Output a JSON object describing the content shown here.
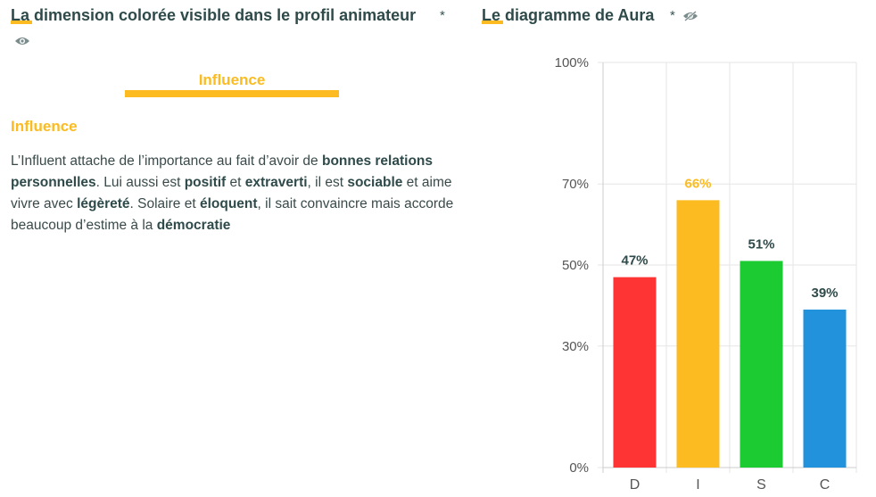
{
  "left_panel": {
    "title": "La dimension colorée visible dans le profil animateur",
    "asterisk": "*",
    "eye_icon": "eye-icon",
    "dimension_label": "Influence",
    "dimension_color": "#fbbb21",
    "section_heading": "Influence",
    "description": [
      {
        "text": "L’Influent attache de l’importance au fait d’avoir de ",
        "bold": false
      },
      {
        "text": "bonnes relations personnelles",
        "bold": true
      },
      {
        "text": ". Lui aussi est ",
        "bold": false
      },
      {
        "text": "positif",
        "bold": true
      },
      {
        "text": " et ",
        "bold": false
      },
      {
        "text": "extraverti",
        "bold": true
      },
      {
        "text": ", il est ",
        "bold": false
      },
      {
        "text": "sociable",
        "bold": true
      },
      {
        "text": " et aime vivre avec ",
        "bold": false
      },
      {
        "text": "légèreté",
        "bold": true
      },
      {
        "text": ". Solaire et ",
        "bold": false
      },
      {
        "text": "éloquent",
        "bold": true
      },
      {
        "text": ", il sait convaincre mais accorde beaucoup d’estime à la ",
        "bold": false
      },
      {
        "text": "démocratie",
        "bold": true
      }
    ]
  },
  "right_panel": {
    "title": "Le diagramme de Aura",
    "asterisk": "*",
    "eye_icon": "eye-off-icon"
  },
  "chart_data": {
    "type": "bar",
    "categories": [
      "D",
      "I",
      "S",
      "C"
    ],
    "values": [
      47,
      66,
      51,
      39
    ],
    "value_labels": [
      "47%",
      "66%",
      "51%",
      "39%"
    ],
    "colors": [
      "#fe3333",
      "#fbbb21",
      "#1bcb31",
      "#2392dc"
    ],
    "value_label_colors": [
      "#2f4a4a",
      "#fbbb21",
      "#2f4a4a",
      "#2f4a4a"
    ],
    "y_ticks": [
      0,
      30,
      50,
      70,
      100
    ],
    "y_tick_labels": [
      "0%",
      "30%",
      "50%",
      "70%",
      "100%"
    ],
    "ylim": [
      0,
      100
    ],
    "grid": true,
    "title": "",
    "xlabel": "",
    "ylabel": ""
  }
}
